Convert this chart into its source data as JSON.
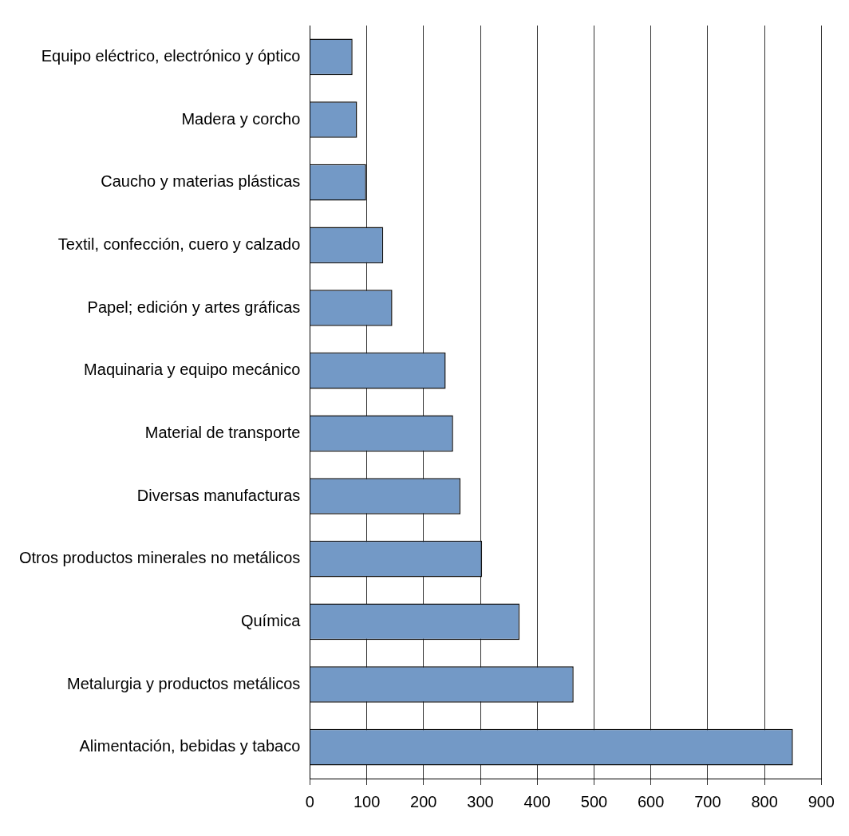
{
  "chart_data": {
    "type": "bar",
    "orientation": "horizontal",
    "categories": [
      "Equipo eléctrico, electrónico y óptico",
      "Madera y corcho",
      "Caucho y materias plásticas",
      "Textil, confección, cuero y calzado",
      "Papel; edición y artes gráficas",
      "Maquinaria y equipo mecánico",
      "Material de transporte",
      "Diversas manufacturas",
      "Otros productos minerales no metálicos",
      "Química",
      "Metalurgia y productos metálicos",
      "Alimentación, bebidas y tabaco"
    ],
    "values": [
      75,
      83,
      99,
      129,
      145,
      239,
      252,
      265,
      303,
      369,
      464,
      850
    ],
    "color": "#7399c6",
    "xlim": [
      0,
      900
    ],
    "xticks": [
      0,
      100,
      200,
      300,
      400,
      500,
      600,
      700,
      800,
      900
    ],
    "grid": "x",
    "legend": false
  }
}
